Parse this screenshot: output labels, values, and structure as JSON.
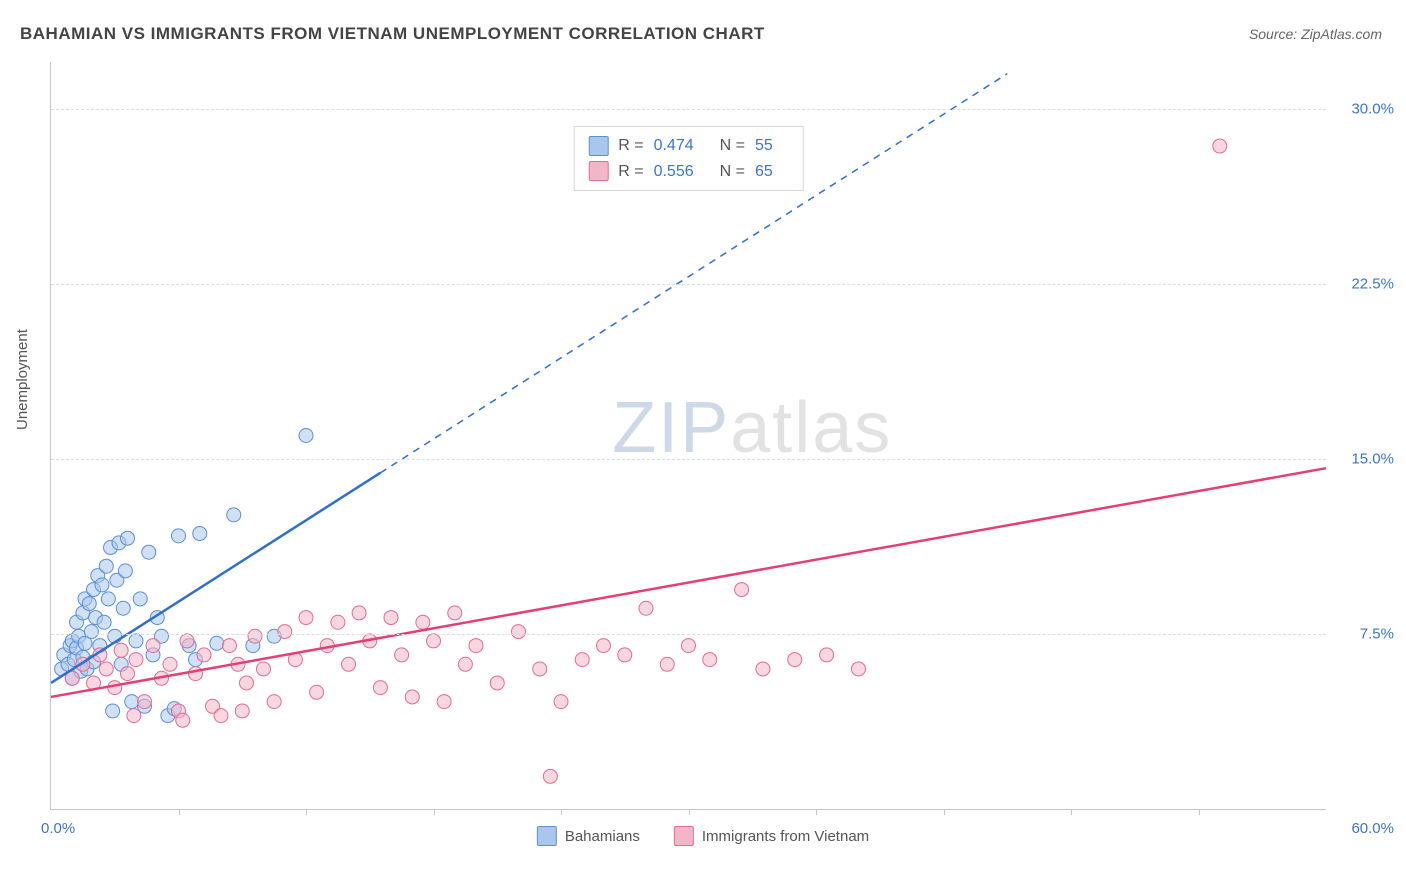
{
  "title": "BAHAMIAN VS IMMIGRANTS FROM VIETNAM UNEMPLOYMENT CORRELATION CHART",
  "source": "Source: ZipAtlas.com",
  "y_axis_label": "Unemployment",
  "watermark_a": "ZIP",
  "watermark_b": "atlas",
  "chart": {
    "type": "scatter",
    "xlim": [
      0,
      60
    ],
    "ylim": [
      0,
      32
    ],
    "x_origin_label": "0.0%",
    "x_max_label": "60.0%",
    "y_ticks": [
      7.5,
      15.0,
      22.5,
      30.0
    ],
    "y_tick_labels": [
      "7.5%",
      "15.0%",
      "22.5%",
      "30.0%"
    ],
    "x_minor_ticks": [
      6,
      12,
      18,
      24,
      30,
      36,
      42,
      48,
      54
    ],
    "background_color": "#ffffff",
    "grid_color": "#dcdcdc",
    "axis_color": "#c8c8c8",
    "marker_radius": 7,
    "marker_opacity": 0.55,
    "line_width": 2.5,
    "series": [
      {
        "name": "Bahamians",
        "color_fill": "#a9c7ec",
        "color_stroke": "#5b8fd6",
        "color_line": "#2f6fd0",
        "R": "0.474",
        "N": "55",
        "trend": {
          "x1": 0,
          "y1": 5.4,
          "x2_solid": 15.5,
          "y2_solid": 14.4,
          "x2_dash": 45,
          "y2_dash": 31.5
        },
        "points": [
          [
            0.5,
            6.0
          ],
          [
            0.6,
            6.6
          ],
          [
            0.8,
            6.2
          ],
          [
            0.9,
            7.0
          ],
          [
            1.0,
            5.6
          ],
          [
            1.0,
            7.2
          ],
          [
            1.1,
            6.4
          ],
          [
            1.2,
            6.9
          ],
          [
            1.2,
            8.0
          ],
          [
            1.3,
            7.4
          ],
          [
            1.4,
            5.9
          ],
          [
            1.5,
            6.5
          ],
          [
            1.5,
            8.4
          ],
          [
            1.6,
            7.1
          ],
          [
            1.6,
            9.0
          ],
          [
            1.7,
            6.0
          ],
          [
            1.8,
            8.8
          ],
          [
            1.9,
            7.6
          ],
          [
            2.0,
            6.3
          ],
          [
            2.0,
            9.4
          ],
          [
            2.1,
            8.2
          ],
          [
            2.2,
            10.0
          ],
          [
            2.3,
            7.0
          ],
          [
            2.4,
            9.6
          ],
          [
            2.5,
            8.0
          ],
          [
            2.6,
            10.4
          ],
          [
            2.7,
            9.0
          ],
          [
            2.8,
            11.2
          ],
          [
            2.9,
            4.2
          ],
          [
            3.0,
            7.4
          ],
          [
            3.1,
            9.8
          ],
          [
            3.2,
            11.4
          ],
          [
            3.3,
            6.2
          ],
          [
            3.4,
            8.6
          ],
          [
            3.5,
            10.2
          ],
          [
            3.6,
            11.6
          ],
          [
            3.8,
            4.6
          ],
          [
            4.0,
            7.2
          ],
          [
            4.2,
            9.0
          ],
          [
            4.4,
            4.4
          ],
          [
            4.6,
            11.0
          ],
          [
            4.8,
            6.6
          ],
          [
            5.0,
            8.2
          ],
          [
            5.2,
            7.4
          ],
          [
            5.5,
            4.0
          ],
          [
            6.0,
            11.7
          ],
          [
            6.5,
            7.0
          ],
          [
            7.0,
            11.8
          ],
          [
            7.8,
            7.1
          ],
          [
            8.6,
            12.6
          ],
          [
            9.5,
            7.0
          ],
          [
            10.5,
            7.4
          ],
          [
            12.0,
            16.0
          ],
          [
            6.8,
            6.4
          ],
          [
            5.8,
            4.3
          ]
        ]
      },
      {
        "name": "Immigrants from Vietnam",
        "color_fill": "#f3b6c8",
        "color_stroke": "#e76a94",
        "color_line": "#e63e77",
        "R": "0.556",
        "N": "65",
        "trend": {
          "x1": 0,
          "y1": 4.8,
          "x2_solid": 60,
          "y2_solid": 14.6,
          "x2_dash": 60,
          "y2_dash": 14.6
        },
        "points": [
          [
            1.0,
            5.6
          ],
          [
            1.5,
            6.2
          ],
          [
            2.0,
            5.4
          ],
          [
            2.3,
            6.6
          ],
          [
            2.6,
            6.0
          ],
          [
            3.0,
            5.2
          ],
          [
            3.3,
            6.8
          ],
          [
            3.6,
            5.8
          ],
          [
            4.0,
            6.4
          ],
          [
            4.4,
            4.6
          ],
          [
            4.8,
            7.0
          ],
          [
            5.2,
            5.6
          ],
          [
            5.6,
            6.2
          ],
          [
            6.0,
            4.2
          ],
          [
            6.4,
            7.2
          ],
          [
            6.8,
            5.8
          ],
          [
            7.2,
            6.6
          ],
          [
            7.6,
            4.4
          ],
          [
            8.0,
            4.0
          ],
          [
            8.4,
            7.0
          ],
          [
            8.8,
            6.2
          ],
          [
            9.2,
            5.4
          ],
          [
            9.6,
            7.4
          ],
          [
            10.0,
            6.0
          ],
          [
            10.5,
            4.6
          ],
          [
            11.0,
            7.6
          ],
          [
            11.5,
            6.4
          ],
          [
            12.0,
            8.2
          ],
          [
            12.5,
            5.0
          ],
          [
            13.0,
            7.0
          ],
          [
            13.5,
            8.0
          ],
          [
            14.0,
            6.2
          ],
          [
            14.5,
            8.4
          ],
          [
            15.0,
            7.2
          ],
          [
            15.5,
            5.2
          ],
          [
            16.0,
            8.2
          ],
          [
            16.5,
            6.6
          ],
          [
            17.0,
            4.8
          ],
          [
            17.5,
            8.0
          ],
          [
            18.0,
            7.2
          ],
          [
            18.5,
            4.6
          ],
          [
            19.0,
            8.4
          ],
          [
            19.5,
            6.2
          ],
          [
            20.0,
            7.0
          ],
          [
            21.0,
            5.4
          ],
          [
            22.0,
            7.6
          ],
          [
            23.0,
            6.0
          ],
          [
            24.0,
            4.6
          ],
          [
            25.0,
            6.4
          ],
          [
            26.0,
            7.0
          ],
          [
            27.0,
            6.6
          ],
          [
            28.0,
            8.6
          ],
          [
            29.0,
            6.2
          ],
          [
            30.0,
            7.0
          ],
          [
            31.0,
            6.4
          ],
          [
            32.5,
            9.4
          ],
          [
            33.5,
            6.0
          ],
          [
            35.0,
            6.4
          ],
          [
            36.5,
            6.6
          ],
          [
            38.0,
            6.0
          ],
          [
            23.5,
            1.4
          ],
          [
            55.0,
            28.4
          ],
          [
            3.9,
            4.0
          ],
          [
            6.2,
            3.8
          ],
          [
            9.0,
            4.2
          ]
        ]
      }
    ]
  },
  "legend": {
    "series1_label": "Bahamians",
    "series2_label": "Immigrants from Vietnam"
  },
  "stats_labels": {
    "R": "R =",
    "N": "N ="
  }
}
